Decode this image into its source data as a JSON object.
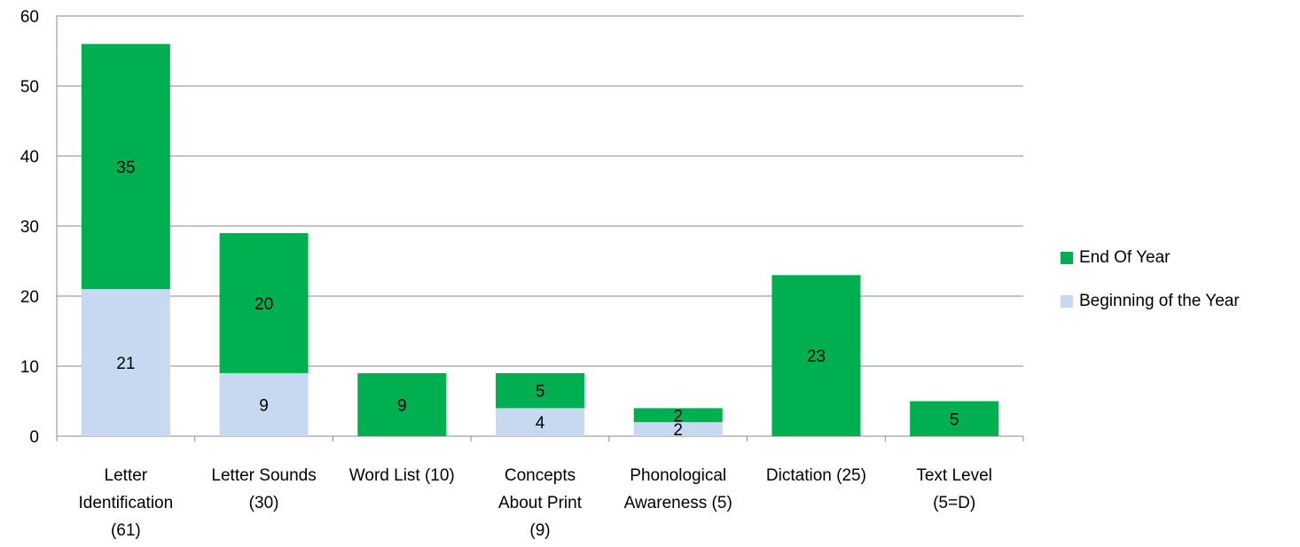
{
  "chart_data": {
    "type": "bar",
    "stacked": true,
    "categories": [
      [
        "Letter",
        "Identification",
        "(61)"
      ],
      [
        "Letter Sounds",
        "(30)"
      ],
      [
        "Word List (10)"
      ],
      [
        "Concepts",
        "About Print",
        "(9)"
      ],
      [
        "Phonological",
        "Awareness (5)"
      ],
      [
        "Dictation (25)"
      ],
      [
        "Text Level",
        "(5=D)"
      ]
    ],
    "series": [
      {
        "name": "Beginning of the Year",
        "color": "#c6d9f1",
        "values": [
          21,
          9,
          0,
          4,
          2,
          0,
          0
        ]
      },
      {
        "name": "End Of Year",
        "color": "#00b050",
        "values": [
          35,
          20,
          9,
          5,
          2,
          23,
          5
        ]
      }
    ],
    "ylim": [
      0,
      60
    ],
    "yticks": [
      0,
      10,
      20,
      30,
      40,
      50,
      60
    ],
    "grid": true,
    "legend_position": "right",
    "legend_order": [
      "End Of Year",
      "Beginning of the Year"
    ]
  }
}
